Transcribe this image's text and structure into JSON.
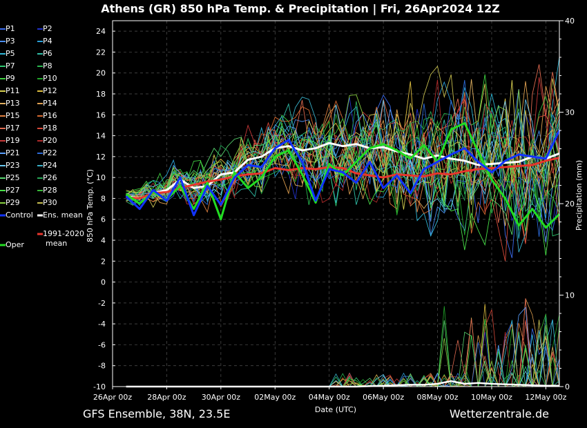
{
  "chart_data": {
    "type": "line",
    "title": "Athens  (GR)  850 hPa Temp. & Precipitation | Fri, 26Apr2024 12Z",
    "xlabel": "Date (UTC)",
    "ylabel": "850 hPa Temp. (°C)",
    "ylabel_right": "Precipitation (mm)",
    "x_ticks": [
      "26Apr 00z",
      "28Apr 00z",
      "30Apr 00z",
      "02May 00z",
      "04May 00z",
      "06May 00z",
      "08May 00z",
      "10May 00z",
      "12May 00z"
    ],
    "y_ticks": [
      24,
      22,
      20,
      18,
      16,
      14,
      12,
      10,
      8,
      6,
      4,
      2,
      0,
      -2,
      -4,
      -6,
      -8,
      -10
    ],
    "y2_ticks": [
      40,
      30,
      20,
      10,
      0
    ],
    "ylim": [
      -10,
      25
    ],
    "y2lim": [
      0,
      40
    ],
    "xlim_days": [
      0,
      16.5
    ],
    "grid": true,
    "series": [
      {
        "name": "Ens. mean",
        "color": "#ffffff",
        "width": 3,
        "x": [
          0.5,
          1,
          1.5,
          2,
          2.5,
          3,
          3.5,
          4,
          4.5,
          5,
          5.5,
          6,
          6.5,
          7,
          7.5,
          8,
          8.5,
          9,
          9.5,
          10,
          10.5,
          11,
          11.5,
          12,
          12.5,
          13,
          13.5,
          14,
          14.5,
          15,
          15.5,
          16,
          16.5
        ],
        "y": [
          8.2,
          8.0,
          8.5,
          8.8,
          9.8,
          9.0,
          9.2,
          10.3,
          10.5,
          11.7,
          12.0,
          12.8,
          13.0,
          12.6,
          12.8,
          13.3,
          13.0,
          13.2,
          12.8,
          12.9,
          12.5,
          12.2,
          11.8,
          12.1,
          11.8,
          11.6,
          11.2,
          11.3,
          11.4,
          11.5,
          12.0,
          11.8,
          12.3
        ]
      },
      {
        "name": "1991-2020 mean",
        "color": "#e8352c",
        "width": 3,
        "x": [
          0.5,
          1,
          1.5,
          2,
          2.5,
          3,
          3.5,
          4,
          4.5,
          5,
          5.5,
          6,
          6.5,
          7,
          7.5,
          8,
          8.5,
          9,
          9.5,
          10,
          10.5,
          11,
          11.5,
          12,
          12.5,
          13,
          13.5,
          14,
          14.5,
          15,
          15.5,
          16,
          16.5
        ],
        "y": [
          8.1,
          8.0,
          8.5,
          8.6,
          9.0,
          9.3,
          9.6,
          9.8,
          10.1,
          10.3,
          10.4,
          10.9,
          10.7,
          10.9,
          10.8,
          11.0,
          10.9,
          10.4,
          10.2,
          10.0,
          10.3,
          10.2,
          10.1,
          10.4,
          10.3,
          10.6,
          10.8,
          10.9,
          11.0,
          11.1,
          11.2,
          11.6,
          11.9
        ]
      },
      {
        "name": "Oper",
        "color": "#22dd22",
        "width": 3,
        "x": [
          0.5,
          1,
          1.5,
          2,
          2.5,
          3,
          3.5,
          4,
          4.5,
          5,
          5.5,
          6,
          6.5,
          7,
          7.5,
          8,
          8.5,
          9,
          9.5,
          10,
          10.5,
          11,
          11.5,
          12,
          12.5,
          13,
          13.5,
          14,
          14.5,
          15,
          15.5,
          16,
          16.5
        ],
        "y": [
          8.4,
          7.5,
          8.6,
          7.9,
          9.2,
          7.0,
          9.5,
          6.0,
          10.5,
          9.0,
          10.0,
          12.0,
          12.6,
          10.3,
          7.6,
          11.3,
          10.2,
          11.5,
          12.8,
          13.2,
          12.6,
          11.8,
          13.1,
          11.5,
          14.6,
          15.2,
          12.5,
          9.8,
          8.0,
          5.4,
          7.0,
          5.2,
          6.5
        ]
      },
      {
        "name": "Control",
        "color": "#1133ff",
        "width": 3,
        "x": [
          0.5,
          1,
          1.5,
          2,
          2.5,
          3,
          3.5,
          4,
          4.5,
          5,
          5.5,
          6,
          6.5,
          7,
          7.5,
          8,
          8.5,
          9,
          9.5,
          10,
          10.5,
          11,
          11.5,
          12,
          12.5,
          13,
          13.5,
          14,
          14.5,
          15,
          15.5,
          16,
          16.5
        ],
        "y": [
          8.2,
          7.0,
          8.8,
          7.8,
          10.0,
          6.4,
          9.2,
          7.4,
          10.0,
          11.2,
          11.0,
          12.8,
          13.6,
          11.5,
          7.8,
          10.8,
          10.5,
          9.5,
          11.5,
          9.0,
          10.2,
          8.5,
          10.8,
          11.5,
          12.2,
          12.8,
          11.5,
          10.5,
          11.6,
          12.2,
          12.0,
          11.8,
          14.5
        ]
      },
      {
        "name": "Precip mean",
        "color": "#ffffff",
        "width": 2.5,
        "axis": "right",
        "x": [
          0.5,
          2,
          4,
          6,
          8,
          9,
          10,
          11,
          11.5,
          12,
          12.5,
          13,
          13.5,
          14,
          15,
          16,
          16.5
        ],
        "y": [
          0,
          0,
          0,
          0,
          0,
          0,
          0.1,
          0.2,
          0.2,
          0.3,
          0.6,
          0.3,
          0.4,
          0.3,
          0.2,
          0.1,
          0.1
        ]
      }
    ]
  },
  "legend": {
    "items": [
      {
        "label": "P1",
        "color": "#3b6cf0"
      },
      {
        "label": "P2",
        "color": "#2233cc"
      },
      {
        "label": "P3",
        "color": "#4a8ef0"
      },
      {
        "label": "P4",
        "color": "#2ba0d8"
      },
      {
        "label": "P5",
        "color": "#30b8d8"
      },
      {
        "label": "P6",
        "color": "#30c0a8"
      },
      {
        "label": "P7",
        "color": "#2ec870"
      },
      {
        "label": "P8",
        "color": "#2ab850"
      },
      {
        "label": "P9",
        "color": "#3ed040"
      },
      {
        "label": "P10",
        "color": "#22a82a"
      },
      {
        "label": "P11",
        "color": "#d8d050"
      },
      {
        "label": "P12",
        "color": "#e0c040"
      },
      {
        "label": "P13",
        "color": "#e0b060"
      },
      {
        "label": "P14",
        "color": "#e0a050"
      },
      {
        "label": "P15",
        "color": "#e08040"
      },
      {
        "label": "P16",
        "color": "#d86a30"
      },
      {
        "label": "P17",
        "color": "#e06a50"
      },
      {
        "label": "P18",
        "color": "#d84a3a"
      },
      {
        "label": "P19",
        "color": "#c83838"
      },
      {
        "label": "P20",
        "color": "#b02a2a"
      },
      {
        "label": "P21",
        "color": "#5aa0ff"
      },
      {
        "label": "P22",
        "color": "#2c6ad8"
      },
      {
        "label": "P23",
        "color": "#6ac8f0"
      },
      {
        "label": "P24",
        "color": "#38b0c8"
      },
      {
        "label": "P25",
        "color": "#58d870"
      },
      {
        "label": "P26",
        "color": "#28a858"
      },
      {
        "label": "P27",
        "color": "#48e048"
      },
      {
        "label": "P28",
        "color": "#38b838"
      },
      {
        "label": "P29",
        "color": "#88d040"
      },
      {
        "label": "P30",
        "color": "#c8c050"
      }
    ],
    "control_label": "Control",
    "mean_label": "Ens. mean",
    "clim_label_1": "1991-2020",
    "clim_label_2": "mean",
    "oper_label": "Oper"
  },
  "footer": {
    "left": "GFS Ensemble, 38N, 23.5E",
    "right": "Wetterzentrale.de"
  }
}
